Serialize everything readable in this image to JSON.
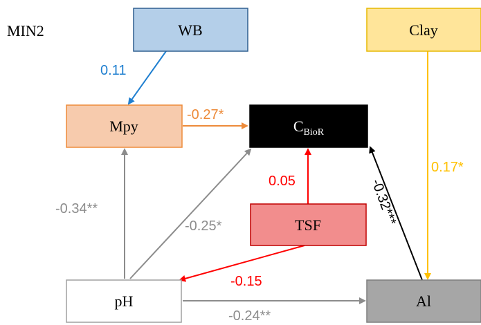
{
  "title": "MIN2",
  "nodes": {
    "wb": {
      "label": "WB"
    },
    "clay": {
      "label": "Clay"
    },
    "mpy": {
      "label": "Mpy"
    },
    "cbior": {
      "label_main": "C",
      "label_sub": "BioR"
    },
    "tsf": {
      "label": "TSF"
    },
    "ph": {
      "label": "pH"
    },
    "al": {
      "label": "Al"
    }
  },
  "edges": {
    "wb_mpy": {
      "coef": "0.11",
      "color": "#1f7fd0"
    },
    "mpy_cbior": {
      "coef": "-0.27*",
      "color": "#ed8b3a"
    },
    "clay_al": {
      "coef": "0.17*",
      "color": "#ffc000"
    },
    "tsf_cbior": {
      "coef": "0.05",
      "color": "#ff0000"
    },
    "al_cbior": {
      "coef": "-0.32***",
      "color": "#000000"
    },
    "ph_mpy": {
      "coef": "-0.34**",
      "color": "#8c8c8c"
    },
    "ph_cbior": {
      "coef": "-0.25*",
      "color": "#8c8c8c"
    },
    "tsf_ph": {
      "coef": "-0.15",
      "color": "#ff0000"
    },
    "ph_al": {
      "coef": "-0.24**",
      "color": "#8c8c8c"
    }
  }
}
